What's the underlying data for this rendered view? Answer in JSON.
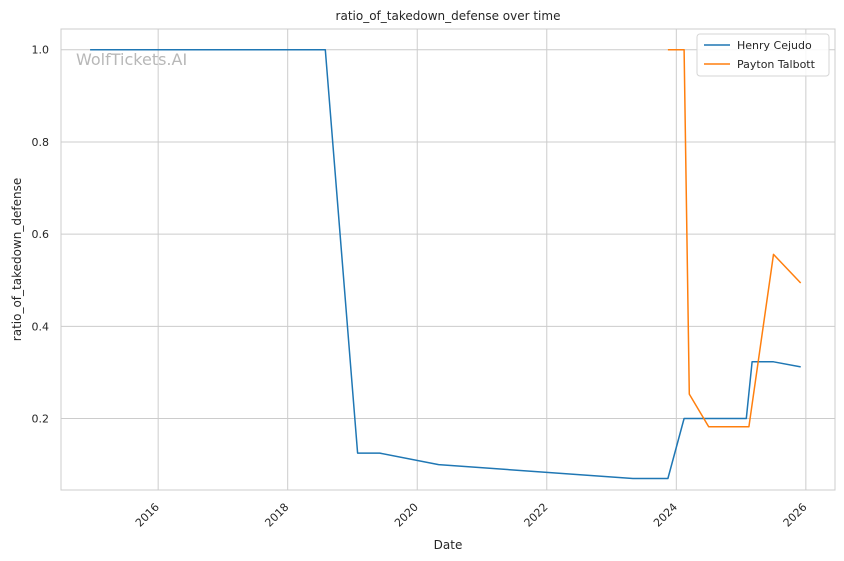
{
  "chart_data": {
    "type": "line",
    "title": "ratio_of_takedown_defense over time",
    "xlabel": "Date",
    "ylabel": "ratio_of_takedown_defense",
    "watermark": "WolfTickets.AI",
    "x_ticks": [
      "2016",
      "2018",
      "2020",
      "2022",
      "2024",
      "2026"
    ],
    "y_ticks": [
      "0.2",
      "0.4",
      "0.6",
      "0.8",
      "1.0"
    ],
    "xlim": [
      2014.5,
      2026.45
    ],
    "ylim": [
      0.045,
      1.045
    ],
    "grid": true,
    "legend_position": "top-right",
    "series": [
      {
        "name": "Henry Cejudo",
        "color": "#1f77b4",
        "points": [
          [
            2014.95,
            1.0
          ],
          [
            2018.58,
            1.0
          ],
          [
            2019.08,
            0.125
          ],
          [
            2019.42,
            0.125
          ],
          [
            2020.33,
            0.1
          ],
          [
            2023.33,
            0.07
          ],
          [
            2023.87,
            0.07
          ],
          [
            2024.12,
            0.2
          ],
          [
            2025.08,
            0.2
          ],
          [
            2025.17,
            0.323
          ],
          [
            2025.5,
            0.323
          ],
          [
            2025.92,
            0.312
          ]
        ]
      },
      {
        "name": "Payton Talbott",
        "color": "#ff7f0e",
        "points": [
          [
            2023.87,
            1.0
          ],
          [
            2024.12,
            1.0
          ],
          [
            2024.2,
            0.253
          ],
          [
            2024.5,
            0.182
          ],
          [
            2025.12,
            0.182
          ],
          [
            2025.5,
            0.556
          ],
          [
            2025.92,
            0.494
          ]
        ]
      }
    ]
  }
}
